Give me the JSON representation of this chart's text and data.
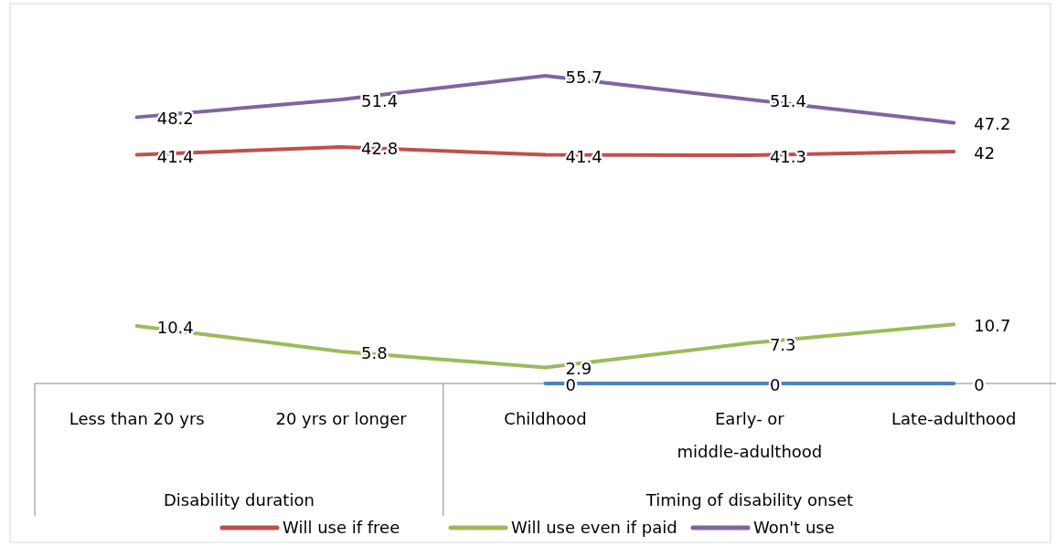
{
  "chart_data": {
    "type": "line",
    "categories": [
      "Less than 20 yrs",
      "20 yrs or longer",
      "Childhood",
      "Early- or middle-adulthood",
      "Late-adulthood"
    ],
    "series": [
      {
        "name": "Will use if free",
        "color": "#c0504d",
        "values": [
          41.4,
          42.8,
          41.4,
          41.3,
          42
        ]
      },
      {
        "name": "Will use even if paid",
        "color": "#9bbb59",
        "values": [
          10.4,
          5.8,
          2.9,
          7.3,
          10.7
        ]
      },
      {
        "name": "Won't use",
        "color": "#8064a2",
        "values": [
          48.2,
          51.4,
          55.7,
          51.4,
          47.2
        ]
      },
      {
        "color": "#4f81bd",
        "values": [
          null,
          null,
          0,
          0,
          0
        ]
      }
    ],
    "annotations": [
      "Disability duration",
      "Timing of disability onset"
    ],
    "tick_labels": "x",
    "data_labels": true,
    "legend": "bottom",
    "marker": "none",
    "line_style": "solid"
  }
}
